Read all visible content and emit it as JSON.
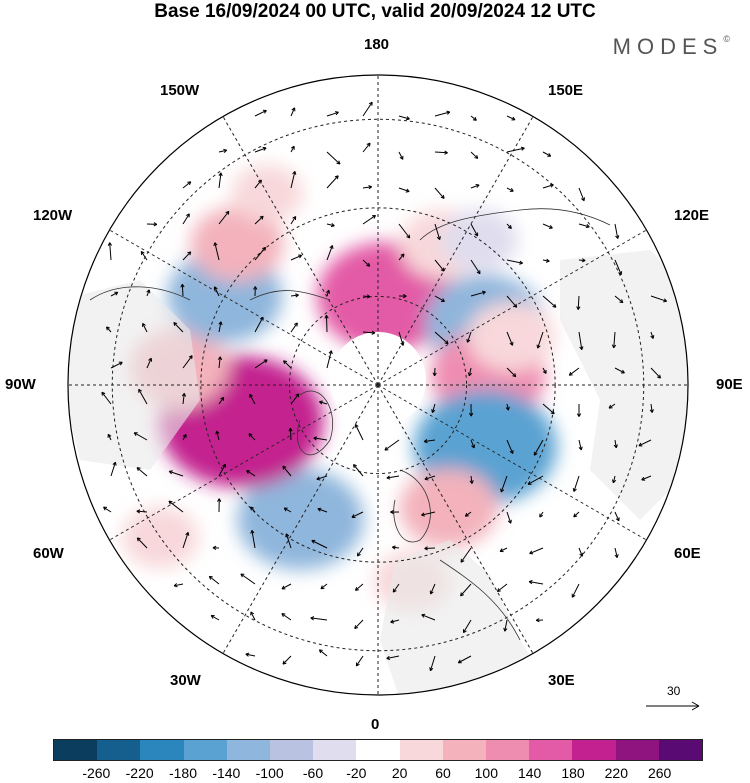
{
  "title": "Base 16/09/2024 00 UTC, valid 20/09/2024 12 UTC",
  "brand": "MODES",
  "brand_mark": "©",
  "lon_labels": {
    "n180": "180",
    "w150": "150W",
    "e150": "150E",
    "w120": "120W",
    "e120": "120E",
    "w90": "90W",
    "e90": "90E",
    "w60": "60W",
    "e60": "60E",
    "w30": "30W",
    "e30": "30E",
    "s0": "0"
  },
  "reference_vector": "30",
  "colorbar": {
    "colors": [
      "#0b3d5e",
      "#145f8d",
      "#2a86bd",
      "#5aa2d2",
      "#8fb6dc",
      "#b9c2e0",
      "#e0ddee",
      "#ffffff",
      "#f8d8da",
      "#f3b2bc",
      "#ef8db1",
      "#e35aa6",
      "#c3218f",
      "#8f1480",
      "#5a0a73"
    ],
    "labels": [
      "-260",
      "-220",
      "-180",
      "-140",
      "-100",
      "-60",
      "-20",
      "20",
      "60",
      "100",
      "140",
      "180",
      "220",
      "260"
    ]
  },
  "anomalies": [
    {
      "lat": 70,
      "lon": 175,
      "value": 150
    },
    {
      "lat": 55,
      "lon": 155,
      "value": 60
    },
    {
      "lat": 62,
      "lon": 120,
      "value": -120
    },
    {
      "lat": 65,
      "lon": 95,
      "value": 110
    },
    {
      "lat": 58,
      "lon": 110,
      "value": 60
    },
    {
      "lat": 62,
      "lon": 60,
      "value": -160
    },
    {
      "lat": 58,
      "lon": 30,
      "value": 80
    },
    {
      "lat": 45,
      "lon": 10,
      "value": 40
    },
    {
      "lat": 55,
      "lon": -30,
      "value": -130
    },
    {
      "lat": 58,
      "lon": -75,
      "value": 200
    },
    {
      "lat": 45,
      "lon": -95,
      "value": 80
    },
    {
      "lat": 50,
      "lon": -120,
      "value": -110
    },
    {
      "lat": 45,
      "lon": -135,
      "value": 70
    },
    {
      "lat": 30,
      "lon": -55,
      "value": 40
    },
    {
      "lat": 40,
      "lon": -150,
      "value": 30
    },
    {
      "lat": 50,
      "lon": 145,
      "value": -40
    }
  ]
}
